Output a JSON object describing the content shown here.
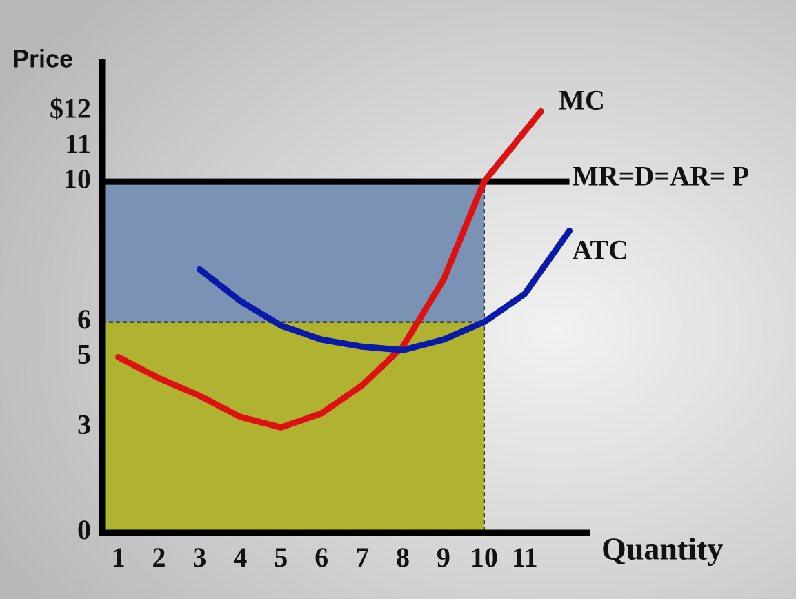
{
  "chart_data": {
    "type": "line",
    "y_label": "Price",
    "x_label": "Quantity",
    "xlim": [
      0.6,
      12.6
    ],
    "ylim": [
      0,
      13.5
    ],
    "xticks": [
      1,
      2,
      3,
      4,
      5,
      6,
      7,
      8,
      9,
      10,
      11
    ],
    "yticks": [
      0,
      3,
      5,
      6,
      10,
      11,
      {
        "value": 12,
        "label": "$12"
      }
    ],
    "price": 10,
    "quantity": 10,
    "atc_at_quantity": 6,
    "price_line": {
      "name": "MR=D=AR= P",
      "color": "#000000"
    },
    "profit_color": "#7a93b4",
    "cost_color": "#b0b332",
    "series": [
      {
        "name": "MC",
        "color": "#dd1111",
        "x": [
          1,
          2,
          3,
          4,
          5,
          6,
          7,
          8,
          9,
          10,
          11.4
        ],
        "values": [
          5,
          4.4,
          3.9,
          3.3,
          3,
          3.4,
          4.2,
          5.3,
          7.2,
          10,
          12
        ]
      },
      {
        "name": "ATC",
        "color": "#0a1aa8",
        "x": [
          3,
          4,
          5,
          6,
          7,
          8,
          9,
          10,
          11,
          12.1
        ],
        "values": [
          7.5,
          6.6,
          5.9,
          5.5,
          5.3,
          5.2,
          5.5,
          6,
          6.8,
          8.6
        ]
      }
    ]
  }
}
